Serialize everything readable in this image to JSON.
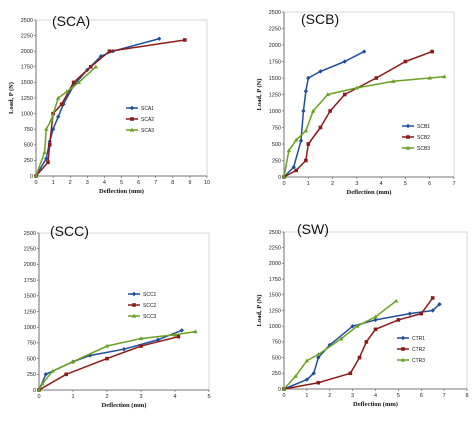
{
  "chart_data": [
    {
      "type": "line",
      "title": "(SCA)",
      "xlabel": "Deflection (mm)",
      "ylabel": "Load, P (N)",
      "xlim": [
        0,
        10
      ],
      "ylim": [
        0,
        2500
      ],
      "xticks": [
        "0",
        "1",
        "2",
        "3",
        "4",
        "5",
        "6",
        "7",
        "8",
        "9",
        "10"
      ],
      "yticks": [
        "0",
        "250",
        "500",
        "750",
        "1000",
        "1250",
        "1500",
        "1750",
        "2000",
        "2250",
        "2500"
      ],
      "legend_position": "right",
      "series": [
        {
          "name": "SCA1",
          "color": "#1f4e9c",
          "marker": "diamond",
          "points": [
            [
              0,
              0
            ],
            [
              0.6,
              280
            ],
            [
              0.8,
              550
            ],
            [
              1.0,
              750
            ],
            [
              1.3,
              950
            ],
            [
              1.6,
              1150
            ],
            [
              2.2,
              1450
            ],
            [
              3.0,
              1700
            ],
            [
              3.8,
              1920
            ],
            [
              4.5,
              2000
            ],
            [
              7.2,
              2200
            ]
          ]
        },
        {
          "name": "SCA2",
          "color": "#8b1a1a",
          "marker": "square",
          "points": [
            [
              0,
              0
            ],
            [
              0.7,
              220
            ],
            [
              0.8,
              500
            ],
            [
              1.0,
              1000
            ],
            [
              1.5,
              1150
            ],
            [
              2.2,
              1500
            ],
            [
              3.2,
              1750
            ],
            [
              4.3,
              2000
            ],
            [
              8.7,
              2180
            ]
          ]
        },
        {
          "name": "SCA3",
          "color": "#6aa121",
          "marker": "triangle",
          "points": [
            [
              0,
              0
            ],
            [
              0.5,
              380
            ],
            [
              0.6,
              750
            ],
            [
              0.9,
              900
            ],
            [
              1.3,
              1250
            ],
            [
              1.8,
              1350
            ],
            [
              2.5,
              1500
            ],
            [
              3.5,
              1750
            ]
          ]
        }
      ]
    },
    {
      "type": "line",
      "title": "(SCB)",
      "xlabel": "Deflection (mm)",
      "ylabel": "Load, P (N)",
      "xlim": [
        0,
        7
      ],
      "ylim": [
        0,
        2500
      ],
      "xticks": [
        "0",
        "1",
        "2",
        "3",
        "4",
        "5",
        "6",
        "7"
      ],
      "yticks": [
        "0",
        "250",
        "500",
        "750",
        "1000",
        "1250",
        "1500",
        "1750",
        "2000",
        "2250",
        "2500"
      ],
      "legend_position": "right",
      "series": [
        {
          "name": "SCB1",
          "color": "#1f4e9c",
          "marker": "diamond",
          "points": [
            [
              0,
              0
            ],
            [
              0.4,
              150
            ],
            [
              0.7,
              550
            ],
            [
              0.8,
              1000
            ],
            [
              0.9,
              1300
            ],
            [
              1.0,
              1500
            ],
            [
              1.5,
              1600
            ],
            [
              2.5,
              1750
            ],
            [
              3.3,
              1900
            ]
          ]
        },
        {
          "name": "SCB2",
          "color": "#8b1a1a",
          "marker": "square",
          "points": [
            [
              0,
              0
            ],
            [
              0.5,
              100
            ],
            [
              0.9,
              250
            ],
            [
              1.0,
              500
            ],
            [
              1.5,
              750
            ],
            [
              1.9,
              1000
            ],
            [
              2.5,
              1250
            ],
            [
              3.8,
              1500
            ],
            [
              5.0,
              1750
            ],
            [
              6.1,
              1900
            ]
          ]
        },
        {
          "name": "SCB3",
          "color": "#6aa121",
          "marker": "triangle",
          "points": [
            [
              0,
              0
            ],
            [
              0.2,
              400
            ],
            [
              0.5,
              560
            ],
            [
              0.9,
              700
            ],
            [
              1.2,
              1000
            ],
            [
              1.8,
              1250
            ],
            [
              3.0,
              1350
            ],
            [
              4.5,
              1450
            ],
            [
              6.0,
              1500
            ],
            [
              6.6,
              1520
            ]
          ]
        }
      ]
    },
    {
      "type": "line",
      "title": "(SCC)",
      "xlabel": "Deflection (mm)",
      "ylabel": "",
      "xlim": [
        0,
        5
      ],
      "ylim": [
        0,
        2500
      ],
      "xticks": [
        "0",
        "1",
        "2",
        "3",
        "4",
        "5"
      ],
      "yticks": [
        "0",
        "250",
        "500",
        "750",
        "1000",
        "1250",
        "1500",
        "1750",
        "2000",
        "2250",
        "2500"
      ],
      "legend_position": "right",
      "series": [
        {
          "name": "SCC1",
          "color": "#1f4e9c",
          "marker": "diamond",
          "points": [
            [
              0,
              0
            ],
            [
              0.2,
              250
            ],
            [
              1.0,
              450
            ],
            [
              1.5,
              550
            ],
            [
              2.5,
              650
            ],
            [
              3.5,
              800
            ],
            [
              4.2,
              950
            ]
          ]
        },
        {
          "name": "SCC2",
          "color": "#8b1a1a",
          "marker": "square",
          "points": [
            [
              0,
              0
            ],
            [
              0.8,
              250
            ],
            [
              2.0,
              500
            ],
            [
              3.0,
              700
            ],
            [
              4.1,
              850
            ]
          ]
        },
        {
          "name": "SCC3",
          "color": "#6aa121",
          "marker": "triangle",
          "points": [
            [
              0,
              0
            ],
            [
              0.1,
              100
            ],
            [
              0.4,
              300
            ],
            [
              1.0,
              450
            ],
            [
              2.0,
              700
            ],
            [
              3.0,
              820
            ],
            [
              4.0,
              880
            ],
            [
              4.6,
              930
            ]
          ]
        }
      ]
    },
    {
      "type": "line",
      "title": "(SW)",
      "xlabel": "Deflection (mm)",
      "ylabel": "Load, P (N)",
      "xlim": [
        0,
        8
      ],
      "ylim": [
        0,
        2500
      ],
      "xticks": [
        "0",
        "1",
        "2",
        "3",
        "4",
        "5",
        "6",
        "7",
        "8"
      ],
      "yticks": [
        "0",
        "250",
        "500",
        "750",
        "1000",
        "1250",
        "1500",
        "1750",
        "2000",
        "2250",
        "2500"
      ],
      "legend_position": "right",
      "series": [
        {
          "name": "CTR1",
          "color": "#1f4e9c",
          "marker": "diamond",
          "points": [
            [
              0,
              0
            ],
            [
              1.0,
              150
            ],
            [
              1.3,
              250
            ],
            [
              1.5,
              500
            ],
            [
              2.0,
              700
            ],
            [
              3.0,
              1000
            ],
            [
              4.0,
              1100
            ],
            [
              5.5,
              1200
            ],
            [
              6.5,
              1250
            ],
            [
              6.8,
              1350
            ]
          ]
        },
        {
          "name": "CTR2",
          "color": "#8b1a1a",
          "marker": "square",
          "points": [
            [
              0,
              0
            ],
            [
              1.5,
              100
            ],
            [
              2.9,
              250
            ],
            [
              3.3,
              500
            ],
            [
              3.6,
              750
            ],
            [
              4.0,
              950
            ],
            [
              5.0,
              1100
            ],
            [
              6.0,
              1200
            ],
            [
              6.5,
              1450
            ]
          ]
        },
        {
          "name": "CTR3",
          "color": "#6aa121",
          "marker": "triangle",
          "points": [
            [
              0,
              0
            ],
            [
              0.5,
              200
            ],
            [
              1.0,
              450
            ],
            [
              1.5,
              550
            ],
            [
              2.5,
              800
            ],
            [
              3.2,
              1000
            ],
            [
              4.0,
              1150
            ],
            [
              4.9,
              1400
            ]
          ]
        }
      ]
    }
  ]
}
